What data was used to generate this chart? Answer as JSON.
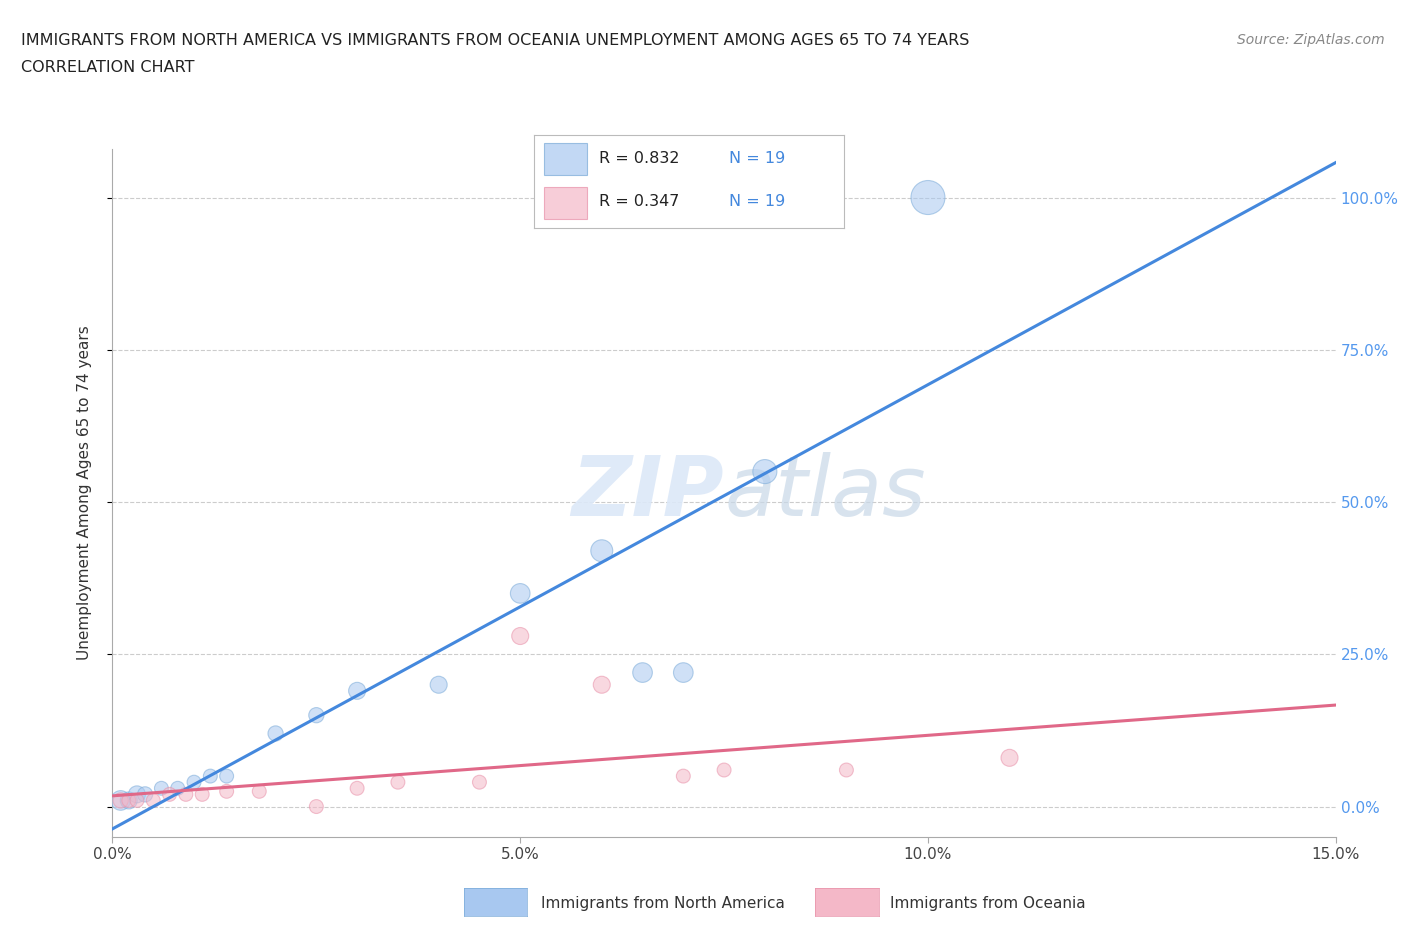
{
  "title_line1": "IMMIGRANTS FROM NORTH AMERICA VS IMMIGRANTS FROM OCEANIA UNEMPLOYMENT AMONG AGES 65 TO 74 YEARS",
  "title_line2": "CORRELATION CHART",
  "source": "Source: ZipAtlas.com",
  "ylabel": "Unemployment Among Ages 65 to 74 years",
  "xlim": [
    0.0,
    0.15
  ],
  "ylim": [
    -0.05,
    1.08
  ],
  "yticks": [
    0.0,
    0.25,
    0.5,
    0.75,
    1.0
  ],
  "ytick_labels": [
    "0.0%",
    "25.0%",
    "50.0%",
    "75.0%",
    "100.0%"
  ],
  "xticks": [
    0.0,
    0.05,
    0.1,
    0.15
  ],
  "xtick_labels": [
    "0.0%",
    "5.0%",
    "10.0%",
    "15.0%"
  ],
  "legend_blue_r": "R = 0.832",
  "legend_blue_n": "N = 19",
  "legend_pink_r": "R = 0.347",
  "legend_pink_n": "N = 19",
  "legend_label_blue": "Immigrants from North America",
  "legend_label_pink": "Immigrants from Oceania",
  "blue_fill": "#a8c8f0",
  "pink_fill": "#f4b8c8",
  "blue_edge": "#7aaad8",
  "pink_edge": "#e890a8",
  "blue_line_color": "#4488dd",
  "pink_line_color": "#e06888",
  "blue_text": "#4488dd",
  "pink_text": "#e06888",
  "right_axis_color": "#5599ee",
  "watermark_color": "#dce8f8",
  "na_x": [
    0.001,
    0.002,
    0.003,
    0.004,
    0.006,
    0.008,
    0.01,
    0.012,
    0.014,
    0.02,
    0.025,
    0.03,
    0.04,
    0.05,
    0.06,
    0.065,
    0.07,
    0.08,
    0.1
  ],
  "na_y": [
    0.01,
    0.01,
    0.02,
    0.02,
    0.03,
    0.03,
    0.04,
    0.05,
    0.05,
    0.12,
    0.15,
    0.19,
    0.2,
    0.35,
    0.42,
    0.22,
    0.22,
    0.55,
    1.0
  ],
  "na_size": [
    200,
    150,
    150,
    120,
    100,
    100,
    100,
    100,
    100,
    120,
    120,
    150,
    150,
    200,
    250,
    200,
    200,
    300,
    600
  ],
  "oc_x": [
    0.001,
    0.002,
    0.003,
    0.005,
    0.007,
    0.009,
    0.011,
    0.014,
    0.018,
    0.025,
    0.03,
    0.035,
    0.045,
    0.05,
    0.06,
    0.07,
    0.075,
    0.09,
    0.11
  ],
  "oc_y": [
    0.01,
    0.01,
    0.01,
    0.01,
    0.02,
    0.02,
    0.02,
    0.025,
    0.025,
    0.0,
    0.03,
    0.04,
    0.04,
    0.28,
    0.2,
    0.05,
    0.06,
    0.06,
    0.08
  ],
  "oc_size": [
    120,
    100,
    100,
    100,
    100,
    100,
    100,
    100,
    100,
    100,
    100,
    100,
    100,
    150,
    150,
    100,
    100,
    100,
    150
  ],
  "background_color": "#ffffff"
}
